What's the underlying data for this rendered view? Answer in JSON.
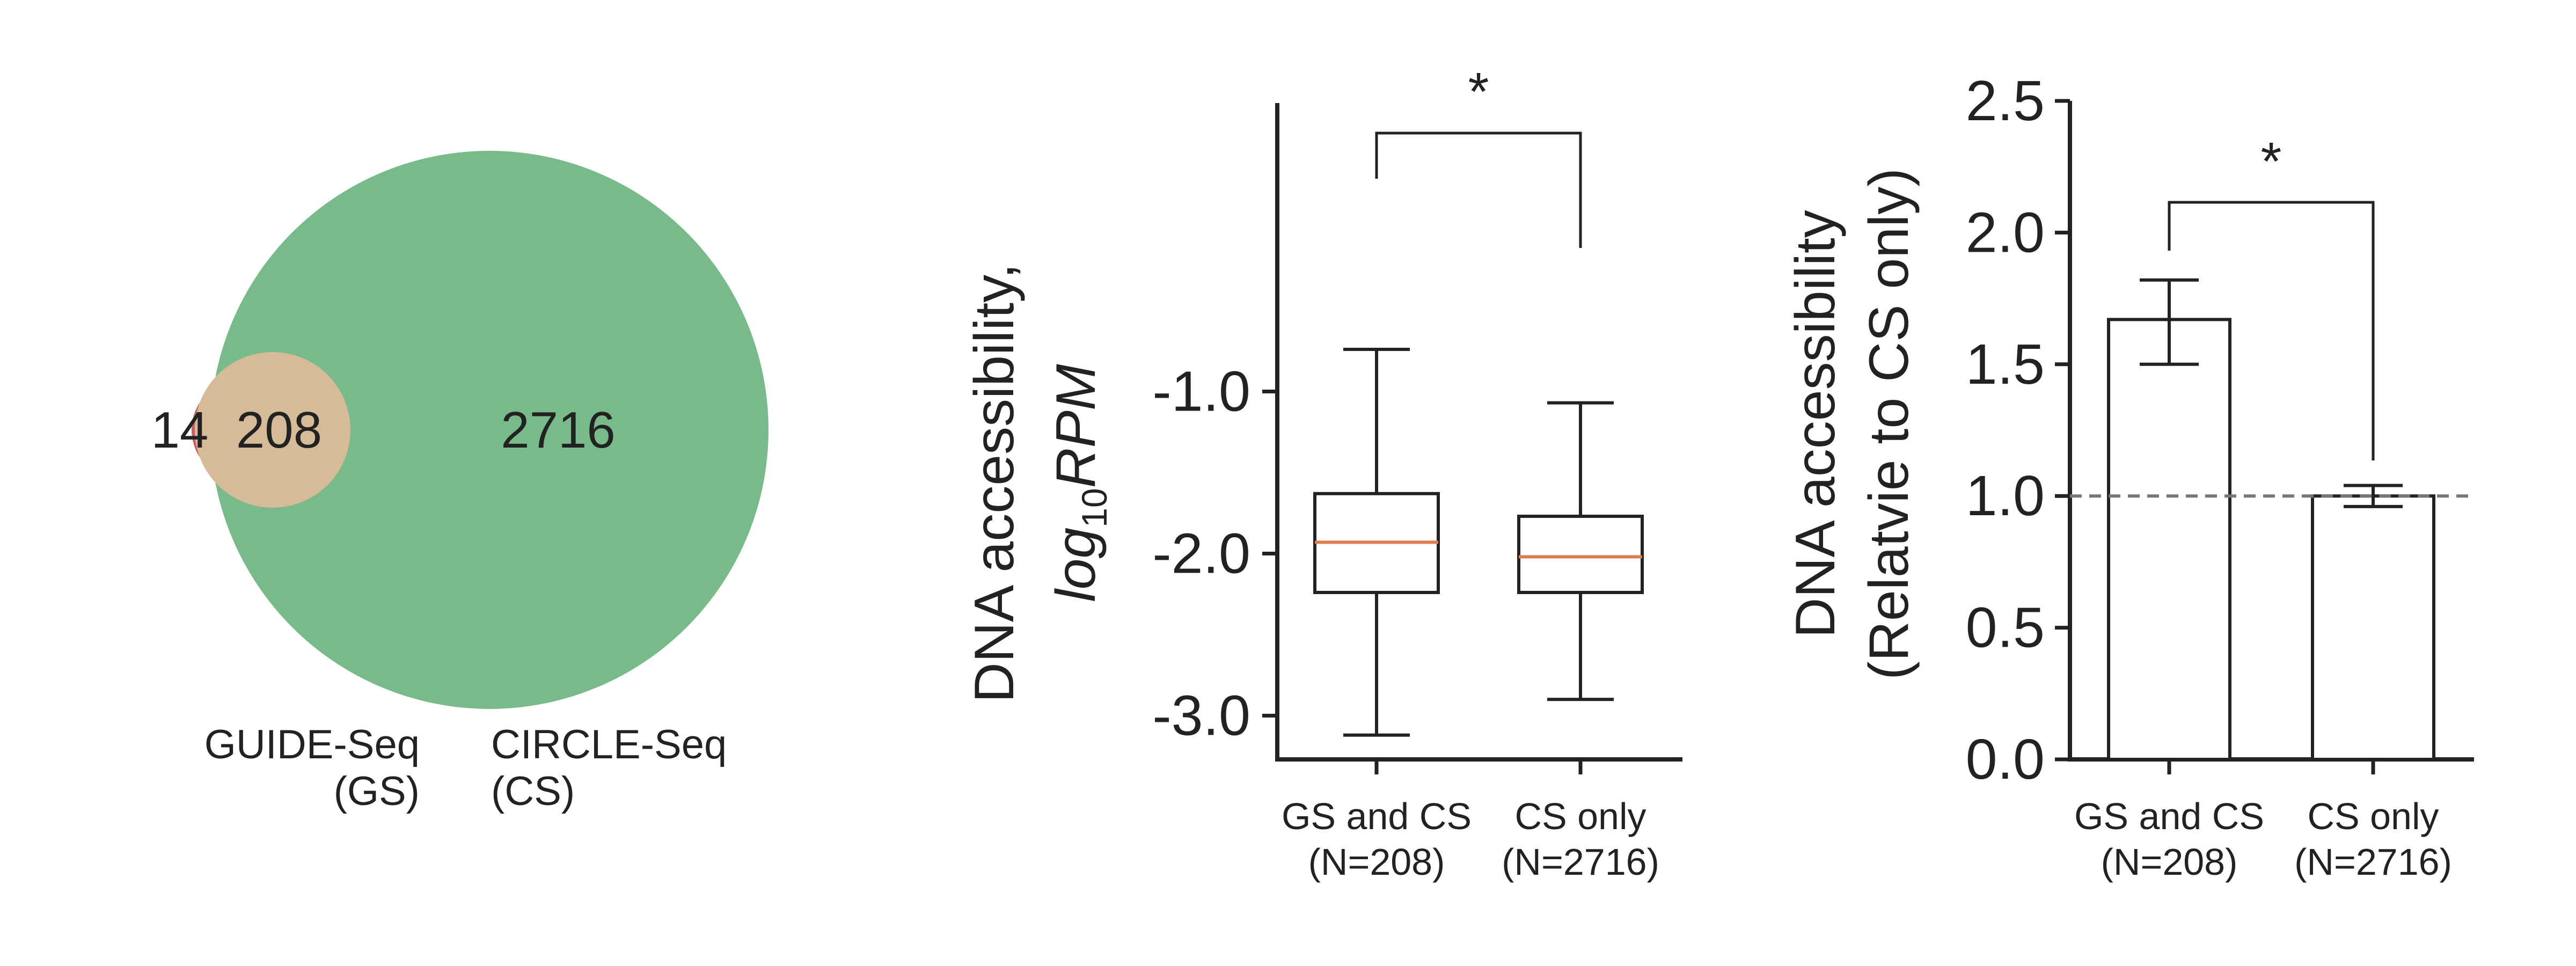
{
  "chart_data": [
    {
      "type": "venn",
      "sets": [
        {
          "name": "GUIDE-Seq",
          "abbr": "(GS)",
          "color": "#c95f67"
        },
        {
          "name": "CIRCLE-Seq",
          "abbr": "(CS)",
          "color": "#79ba8a"
        }
      ],
      "overlap_color": "#d6bb98",
      "counts": {
        "gs_only": "14",
        "both": "208",
        "cs_only": "2716"
      }
    },
    {
      "type": "box",
      "ylabel_line1": "DNA accessibility,",
      "ylabel_line2_base": "log",
      "ylabel_line2_sub": "10",
      "ylabel_line2_tail": "RPM",
      "yticks": [
        -1.0,
        -2.0,
        -3.0
      ],
      "ytick_labels": [
        "-1.0",
        "-2.0",
        "-3.0"
      ],
      "ylim": [
        -3.27,
        0.78
      ],
      "median_color": "#e07d4f",
      "categories": [
        {
          "line1": "GS and CS",
          "line2": "(N=208)"
        },
        {
          "line1": "CS only",
          "line2": "(N=2716)"
        }
      ],
      "boxes": [
        {
          "whisker_low": -3.12,
          "q1": -2.24,
          "median": -1.93,
          "q3": -1.63,
          "whisker_high": -0.74
        },
        {
          "whisker_low": -2.9,
          "q1": -2.24,
          "median": -2.02,
          "q3": -1.77,
          "whisker_high": -1.07
        }
      ],
      "significance": "*"
    },
    {
      "type": "bar",
      "ylabel_line1": "DNA accessibility",
      "ylabel_line2": "(Relatvie to CS only)",
      "yticks": [
        0.0,
        0.5,
        1.0,
        1.5,
        2.0,
        2.5
      ],
      "ytick_labels": [
        "0.0",
        "0.5",
        "1.0",
        "1.5",
        "2.0",
        "2.5"
      ],
      "ylim": [
        0,
        2.5
      ],
      "reference_line": 1.0,
      "categories": [
        {
          "line1": "GS and CS",
          "line2": "(N=208)"
        },
        {
          "line1": "CS only",
          "line2": "(N=2716)"
        }
      ],
      "values": [
        1.67,
        1.0
      ],
      "error_low": [
        1.5,
        0.96
      ],
      "error_high": [
        1.82,
        1.04
      ],
      "significance": "*"
    }
  ]
}
